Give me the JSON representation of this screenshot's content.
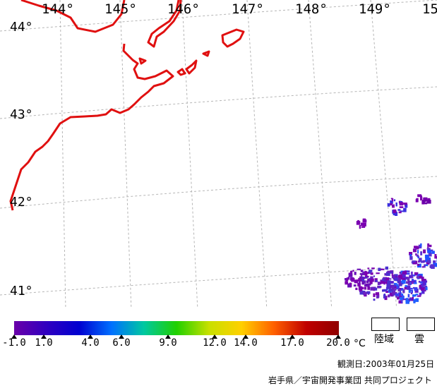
{
  "map": {
    "longitude_labels": [
      "144°",
      "145°",
      "146°",
      "147°",
      "148°",
      "149°",
      "15"
    ],
    "latitude_labels": [
      "44°",
      "43°",
      "42°",
      "41°"
    ],
    "coastline_color": "#e01010",
    "grid_color": "#b0b0b0"
  },
  "colorbar": {
    "ticks": [
      "-1.0",
      "1.0",
      "4.0",
      "6.0",
      "9.0",
      "12.0",
      "14.0",
      "17.0",
      "20.0"
    ],
    "unit": "°C",
    "colors": [
      "#6a00a8",
      "#3000c0",
      "#0000d0",
      "#0070ff",
      "#00c8a0",
      "#20d000",
      "#c8e000",
      "#ffd000",
      "#ff6000",
      "#c00000",
      "#900000"
    ]
  },
  "legend": {
    "land_label": "陸域",
    "cloud_label": "雲"
  },
  "observation_date": "観測日:2003年01月25日",
  "credit": "岩手県／宇宙開発事業団 共同プロジェクト"
}
